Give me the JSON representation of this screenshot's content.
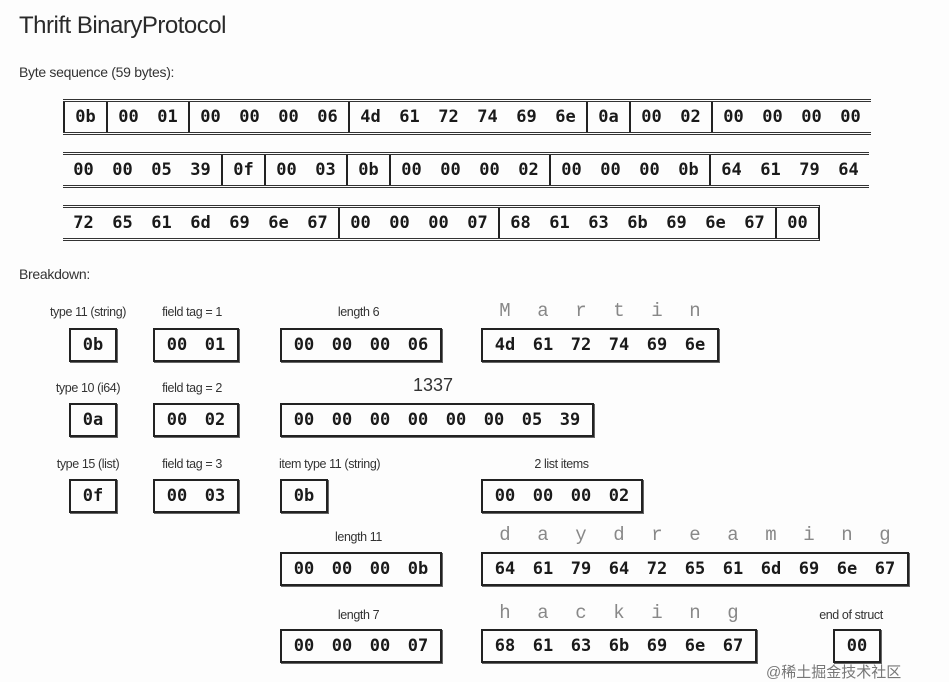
{
  "title": "Thrift BinaryProtocol",
  "byte_sequence_label": "Byte sequence (59 bytes):",
  "breakdown_label": "Breakdown:",
  "sequence_rows": [
    [
      [
        "0b"
      ],
      [
        "00",
        "01"
      ],
      [
        "00",
        "00",
        "00",
        "06"
      ],
      [
        "4d",
        "61",
        "72",
        "74",
        "69",
        "6e"
      ],
      [
        "0a"
      ],
      [
        "00",
        "02"
      ],
      [
        "00",
        "00",
        "00",
        "00"
      ]
    ],
    [
      [
        "00",
        "00",
        "05",
        "39"
      ],
      [
        "0f"
      ],
      [
        "00",
        "03"
      ],
      [
        "0b"
      ],
      [
        "00",
        "00",
        "00",
        "02"
      ],
      [
        "00",
        "00",
        "00",
        "0b"
      ],
      [
        "64",
        "61",
        "79",
        "64"
      ]
    ],
    [
      [
        "72",
        "65",
        "61",
        "6d",
        "69",
        "6e",
        "67"
      ],
      [
        "00",
        "00",
        "00",
        "07"
      ],
      [
        "68",
        "61",
        "63",
        "6b",
        "69",
        "6e",
        "67"
      ],
      [
        "00"
      ]
    ]
  ],
  "breakdown": {
    "type_string": {
      "label": "type 11 (string)",
      "bytes": [
        "0b"
      ]
    },
    "tag1": {
      "label": "field tag = 1",
      "bytes": [
        "00",
        "01"
      ]
    },
    "len6": {
      "label": "length 6",
      "bytes": [
        "00",
        "00",
        "00",
        "06"
      ]
    },
    "martin": {
      "letters": [
        "M",
        "a",
        "r",
        "t",
        "i",
        "n"
      ],
      "bytes": [
        "4d",
        "61",
        "72",
        "74",
        "69",
        "6e"
      ]
    },
    "type_i64": {
      "label": "type 10 (i64)",
      "bytes": [
        "0a"
      ]
    },
    "tag2": {
      "label": "field tag = 2",
      "bytes": [
        "00",
        "02"
      ]
    },
    "i64": {
      "label": "1337",
      "bytes": [
        "00",
        "00",
        "00",
        "00",
        "00",
        "00",
        "05",
        "39"
      ]
    },
    "type_list": {
      "label": "type 15 (list)",
      "bytes": [
        "0f"
      ]
    },
    "tag3": {
      "label": "field tag = 3",
      "bytes": [
        "00",
        "03"
      ]
    },
    "itemtype": {
      "label": "item type 11 (string)",
      "bytes": [
        "0b"
      ]
    },
    "count": {
      "label": "2 list items",
      "bytes": [
        "00",
        "00",
        "00",
        "02"
      ]
    },
    "len11": {
      "label": "length 11",
      "bytes": [
        "00",
        "00",
        "00",
        "0b"
      ]
    },
    "daydreaming": {
      "letters": [
        "d",
        "a",
        "y",
        "d",
        "r",
        "e",
        "a",
        "m",
        "i",
        "n",
        "g"
      ],
      "bytes": [
        "64",
        "61",
        "79",
        "64",
        "72",
        "65",
        "61",
        "6d",
        "69",
        "6e",
        "67"
      ]
    },
    "len7": {
      "label": "length 7",
      "bytes": [
        "00",
        "00",
        "00",
        "07"
      ]
    },
    "hacking": {
      "letters": [
        "h",
        "a",
        "c",
        "k",
        "i",
        "n",
        "g"
      ],
      "bytes": [
        "68",
        "61",
        "63",
        "6b",
        "69",
        "6e",
        "67"
      ]
    },
    "end": {
      "label": "end of struct",
      "bytes": [
        "00"
      ]
    }
  },
  "watermark": "@稀土掘金技术社区"
}
